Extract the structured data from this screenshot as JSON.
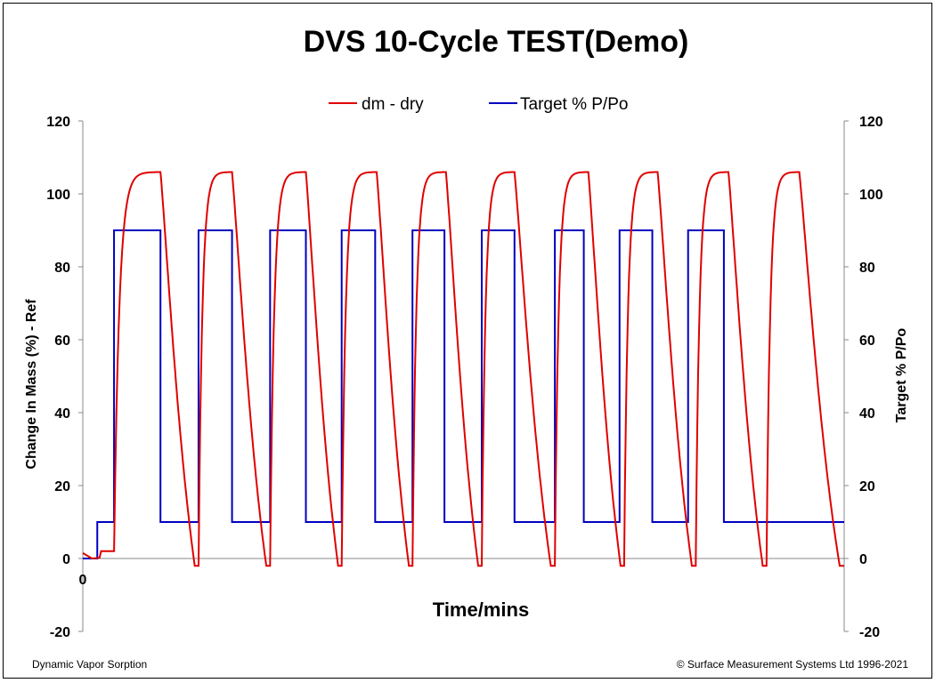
{
  "chart_data": {
    "type": "line",
    "title": "DVS 10-Cycle TEST(Demo)",
    "xlabel": "Time/mins",
    "ylabel_left": "Change In Mass (%) - Ref",
    "ylabel_right": "Target % P/Po",
    "x_tick_labels": [
      "0"
    ],
    "ylim": [
      -20,
      120
    ],
    "y_ticks": [
      -20,
      0,
      20,
      40,
      60,
      80,
      100,
      120
    ],
    "y_tick_labels": [
      "-20",
      "0",
      "20",
      "40",
      "60",
      "80",
      "100",
      "120"
    ],
    "y_ticks_right": [
      -20,
      0,
      20,
      40,
      60,
      80,
      100,
      120
    ],
    "y_tick_labels_right": [
      "-20",
      "0",
      "20",
      "40",
      "60",
      "80",
      "100",
      "120"
    ],
    "grid": false,
    "legend_position": "top-center",
    "series": [
      {
        "name": "dm - dry",
        "color": "#e00000",
        "cycles": [
          {
            "rise_start": 0.05,
            "peak_end": 0.102,
            "min_end": 0.152
          },
          {
            "rise_start": 0.152,
            "peak_end": 0.196,
            "min_end": 0.246
          },
          {
            "rise_start": 0.246,
            "peak_end": 0.293,
            "min_end": 0.34
          },
          {
            "rise_start": 0.34,
            "peak_end": 0.386,
            "min_end": 0.433
          },
          {
            "rise_start": 0.433,
            "peak_end": 0.477,
            "min_end": 0.524
          },
          {
            "rise_start": 0.524,
            "peak_end": 0.567,
            "min_end": 0.62
          },
          {
            "rise_start": 0.62,
            "peak_end": 0.664,
            "min_end": 0.711
          },
          {
            "rise_start": 0.711,
            "peak_end": 0.755,
            "min_end": 0.805
          },
          {
            "rise_start": 0.805,
            "peak_end": 0.848,
            "min_end": 0.898
          },
          {
            "rise_start": 0.898,
            "peak_end": 0.941,
            "min_end": 1.0
          }
        ],
        "peak_value": 106,
        "trough_value": -2,
        "initial_value": 1.5,
        "preconditioning_value": 2
      },
      {
        "name": "Target % P/Po",
        "color": "#0000c0",
        "steps": [
          {
            "x": 0.0,
            "y": 0
          },
          {
            "x": 0.019,
            "y": 10
          },
          {
            "x": 0.041,
            "y": 90
          },
          {
            "x": 0.102,
            "y": 10
          },
          {
            "x": 0.152,
            "y": 90
          },
          {
            "x": 0.196,
            "y": 10
          },
          {
            "x": 0.246,
            "y": 90
          },
          {
            "x": 0.293,
            "y": 10
          },
          {
            "x": 0.34,
            "y": 90
          },
          {
            "x": 0.384,
            "y": 10
          },
          {
            "x": 0.433,
            "y": 90
          },
          {
            "x": 0.475,
            "y": 10
          },
          {
            "x": 0.524,
            "y": 90
          },
          {
            "x": 0.567,
            "y": 10
          },
          {
            "x": 0.62,
            "y": 90
          },
          {
            "x": 0.658,
            "y": 10
          },
          {
            "x": 0.705,
            "y": 90
          },
          {
            "x": 0.748,
            "y": 10
          },
          {
            "x": 0.795,
            "y": 90
          },
          {
            "x": 0.842,
            "y": 10
          },
          {
            "x": 1.0,
            "y": 10
          }
        ]
      }
    ]
  },
  "footer": {
    "left": "Dynamic Vapor Sorption",
    "right": "© Surface Measurement Systems Ltd 1996-2021"
  }
}
